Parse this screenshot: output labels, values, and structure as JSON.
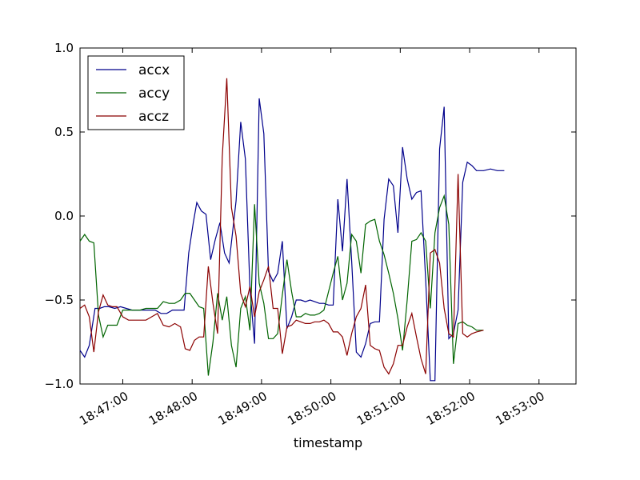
{
  "chart_data": {
    "type": "line",
    "xlabel": "timestamp",
    "ylabel": "",
    "x_tick_labels": [
      "18:47:00",
      "18:48:00",
      "18:49:00",
      "18:50:00",
      "18:51:00",
      "18:52:00",
      "18:53:00"
    ],
    "y_tick_labels": [
      "1.0",
      "0.5",
      "0.0",
      "−0.5",
      "−1.0"
    ],
    "xlim": [
      "18:46:23",
      "18:53:32"
    ],
    "ylim": [
      -1.0,
      1.0
    ],
    "grid": false,
    "legend_position": "top-left",
    "series": [
      {
        "name": "accx",
        "color": "#00008b",
        "points": [
          [
            "18:46:23",
            -0.8
          ],
          [
            "18:46:27",
            -0.84
          ],
          [
            "18:46:31",
            -0.77
          ],
          [
            "18:46:36",
            -0.55
          ],
          [
            "18:46:40",
            -0.55
          ],
          [
            "18:46:44",
            -0.54
          ],
          [
            "18:46:48",
            -0.54
          ],
          [
            "18:46:53",
            -0.55
          ],
          [
            "18:46:58",
            -0.54
          ],
          [
            "18:47:03",
            -0.55
          ],
          [
            "18:47:08",
            -0.56
          ],
          [
            "18:47:13",
            -0.56
          ],
          [
            "18:47:18",
            -0.56
          ],
          [
            "18:47:23",
            -0.56
          ],
          [
            "18:47:28",
            -0.56
          ],
          [
            "18:47:33",
            -0.58
          ],
          [
            "18:47:38",
            -0.58
          ],
          [
            "18:47:43",
            -0.56
          ],
          [
            "18:47:48",
            -0.56
          ],
          [
            "18:47:53",
            -0.56
          ],
          [
            "18:47:57",
            -0.22
          ],
          [
            "18:48:01",
            -0.04
          ],
          [
            "18:48:04",
            0.08
          ],
          [
            "18:48:08",
            0.03
          ],
          [
            "18:48:12",
            0.01
          ],
          [
            "18:48:16",
            -0.26
          ],
          [
            "18:48:20",
            -0.14
          ],
          [
            "18:48:24",
            -0.04
          ],
          [
            "18:48:28",
            -0.22
          ],
          [
            "18:48:32",
            -0.28
          ],
          [
            "18:48:38",
            0.09
          ],
          [
            "18:48:42",
            0.56
          ],
          [
            "18:48:46",
            0.34
          ],
          [
            "18:48:50",
            -0.43
          ],
          [
            "18:48:54",
            -0.76
          ],
          [
            "18:48:58",
            0.7
          ],
          [
            "18:49:02",
            0.49
          ],
          [
            "18:49:06",
            -0.33
          ],
          [
            "18:49:10",
            -0.39
          ],
          [
            "18:49:14",
            -0.34
          ],
          [
            "18:49:18",
            -0.15
          ],
          [
            "18:49:22",
            -0.67
          ],
          [
            "18:49:26",
            -0.6
          ],
          [
            "18:49:30",
            -0.5
          ],
          [
            "18:49:34",
            -0.5
          ],
          [
            "18:49:38",
            -0.51
          ],
          [
            "18:49:42",
            -0.5
          ],
          [
            "18:49:46",
            -0.51
          ],
          [
            "18:49:50",
            -0.52
          ],
          [
            "18:49:54",
            -0.52
          ],
          [
            "18:49:58",
            -0.53
          ],
          [
            "18:50:02",
            -0.53
          ],
          [
            "18:50:06",
            0.1
          ],
          [
            "18:50:10",
            -0.21
          ],
          [
            "18:50:14",
            0.22
          ],
          [
            "18:50:18",
            -0.27
          ],
          [
            "18:50:22",
            -0.81
          ],
          [
            "18:50:26",
            -0.84
          ],
          [
            "18:50:30",
            -0.76
          ],
          [
            "18:50:34",
            -0.64
          ],
          [
            "18:50:38",
            -0.63
          ],
          [
            "18:50:42",
            -0.63
          ],
          [
            "18:50:46",
            -0.02
          ],
          [
            "18:50:50",
            0.22
          ],
          [
            "18:50:54",
            0.18
          ],
          [
            "18:50:58",
            -0.1
          ],
          [
            "18:51:02",
            0.41
          ],
          [
            "18:51:06",
            0.22
          ],
          [
            "18:51:10",
            0.1
          ],
          [
            "18:51:14",
            0.14
          ],
          [
            "18:51:18",
            0.15
          ],
          [
            "18:51:22",
            -0.38
          ],
          [
            "18:51:26",
            -0.98
          ],
          [
            "18:51:30",
            -0.98
          ],
          [
            "18:51:34",
            0.4
          ],
          [
            "18:51:38",
            0.65
          ],
          [
            "18:51:42",
            -0.73
          ],
          [
            "18:51:46",
            -0.7
          ],
          [
            "18:51:50",
            -0.56
          ],
          [
            "18:51:54",
            0.2
          ],
          [
            "18:51:58",
            0.32
          ],
          [
            "18:52:02",
            0.3
          ],
          [
            "18:52:06",
            0.27
          ],
          [
            "18:52:12",
            0.27
          ],
          [
            "18:52:18",
            0.28
          ],
          [
            "18:52:24",
            0.27
          ],
          [
            "18:52:30",
            0.27
          ]
        ]
      },
      {
        "name": "accy",
        "color": "#006400",
        "points": [
          [
            "18:46:23",
            -0.15
          ],
          [
            "18:46:27",
            -0.11
          ],
          [
            "18:46:31",
            -0.15
          ],
          [
            "18:46:35",
            -0.16
          ],
          [
            "18:46:39",
            -0.59
          ],
          [
            "18:46:43",
            -0.72
          ],
          [
            "18:46:47",
            -0.65
          ],
          [
            "18:46:51",
            -0.65
          ],
          [
            "18:46:55",
            -0.65
          ],
          [
            "18:47:00",
            -0.56
          ],
          [
            "18:47:05",
            -0.56
          ],
          [
            "18:47:10",
            -0.56
          ],
          [
            "18:47:15",
            -0.56
          ],
          [
            "18:47:20",
            -0.55
          ],
          [
            "18:47:25",
            -0.55
          ],
          [
            "18:47:30",
            -0.55
          ],
          [
            "18:47:35",
            -0.51
          ],
          [
            "18:47:40",
            -0.52
          ],
          [
            "18:47:45",
            -0.52
          ],
          [
            "18:47:50",
            -0.5
          ],
          [
            "18:47:54",
            -0.46
          ],
          [
            "18:47:58",
            -0.46
          ],
          [
            "18:48:02",
            -0.5
          ],
          [
            "18:48:06",
            -0.54
          ],
          [
            "18:48:10",
            -0.55
          ],
          [
            "18:48:14",
            -0.95
          ],
          [
            "18:48:18",
            -0.75
          ],
          [
            "18:48:22",
            -0.46
          ],
          [
            "18:48:26",
            -0.62
          ],
          [
            "18:48:30",
            -0.48
          ],
          [
            "18:48:34",
            -0.77
          ],
          [
            "18:48:38",
            -0.9
          ],
          [
            "18:48:42",
            -0.55
          ],
          [
            "18:48:46",
            -0.48
          ],
          [
            "18:48:50",
            -0.68
          ],
          [
            "18:48:54",
            0.07
          ],
          [
            "18:48:58",
            -0.4
          ],
          [
            "18:49:02",
            -0.52
          ],
          [
            "18:49:06",
            -0.73
          ],
          [
            "18:49:10",
            -0.73
          ],
          [
            "18:49:14",
            -0.7
          ],
          [
            "18:49:18",
            -0.47
          ],
          [
            "18:49:22",
            -0.26
          ],
          [
            "18:49:26",
            -0.45
          ],
          [
            "18:49:30",
            -0.6
          ],
          [
            "18:49:34",
            -0.6
          ],
          [
            "18:49:38",
            -0.58
          ],
          [
            "18:49:42",
            -0.59
          ],
          [
            "18:49:46",
            -0.59
          ],
          [
            "18:49:50",
            -0.58
          ],
          [
            "18:49:54",
            -0.56
          ],
          [
            "18:49:58",
            -0.45
          ],
          [
            "18:50:02",
            -0.34
          ],
          [
            "18:50:06",
            -0.24
          ],
          [
            "18:50:10",
            -0.5
          ],
          [
            "18:50:14",
            -0.4
          ],
          [
            "18:50:18",
            -0.11
          ],
          [
            "18:50:22",
            -0.15
          ],
          [
            "18:50:26",
            -0.34
          ],
          [
            "18:50:30",
            -0.05
          ],
          [
            "18:50:34",
            -0.03
          ],
          [
            "18:50:38",
            -0.02
          ],
          [
            "18:50:42",
            -0.15
          ],
          [
            "18:50:46",
            -0.23
          ],
          [
            "18:50:50",
            -0.34
          ],
          [
            "18:50:54",
            -0.46
          ],
          [
            "18:50:58",
            -0.61
          ],
          [
            "18:51:02",
            -0.8
          ],
          [
            "18:51:06",
            -0.5
          ],
          [
            "18:51:10",
            -0.15
          ],
          [
            "18:51:14",
            -0.14
          ],
          [
            "18:51:18",
            -0.1
          ],
          [
            "18:51:22",
            -0.15
          ],
          [
            "18:51:26",
            -0.55
          ],
          [
            "18:51:30",
            -0.1
          ],
          [
            "18:51:34",
            0.05
          ],
          [
            "18:51:38",
            0.12
          ],
          [
            "18:51:42",
            -0.05
          ],
          [
            "18:51:46",
            -0.88
          ],
          [
            "18:51:50",
            -0.64
          ],
          [
            "18:51:54",
            -0.63
          ],
          [
            "18:51:58",
            -0.65
          ],
          [
            "18:52:02",
            -0.66
          ],
          [
            "18:52:06",
            -0.68
          ],
          [
            "18:52:12",
            -0.68
          ]
        ]
      },
      {
        "name": "accz",
        "color": "#8b0000",
        "points": [
          [
            "18:46:23",
            -0.55
          ],
          [
            "18:46:27",
            -0.53
          ],
          [
            "18:46:31",
            -0.6
          ],
          [
            "18:46:35",
            -0.81
          ],
          [
            "18:46:39",
            -0.57
          ],
          [
            "18:46:43",
            -0.47
          ],
          [
            "18:46:47",
            -0.53
          ],
          [
            "18:46:51",
            -0.54
          ],
          [
            "18:46:55",
            -0.54
          ],
          [
            "18:47:00",
            -0.6
          ],
          [
            "18:47:05",
            -0.62
          ],
          [
            "18:47:10",
            -0.62
          ],
          [
            "18:47:15",
            -0.62
          ],
          [
            "18:47:20",
            -0.62
          ],
          [
            "18:47:25",
            -0.6
          ],
          [
            "18:47:30",
            -0.58
          ],
          [
            "18:47:35",
            -0.65
          ],
          [
            "18:47:40",
            -0.66
          ],
          [
            "18:47:45",
            -0.64
          ],
          [
            "18:47:50",
            -0.66
          ],
          [
            "18:47:54",
            -0.79
          ],
          [
            "18:47:58",
            -0.8
          ],
          [
            "18:48:02",
            -0.74
          ],
          [
            "18:48:06",
            -0.72
          ],
          [
            "18:48:10",
            -0.72
          ],
          [
            "18:48:14",
            -0.3
          ],
          [
            "18:48:18",
            -0.52
          ],
          [
            "18:48:22",
            -0.7
          ],
          [
            "18:48:26",
            0.35
          ],
          [
            "18:48:30",
            0.82
          ],
          [
            "18:48:34",
            0.05
          ],
          [
            "18:48:38",
            -0.12
          ],
          [
            "18:48:42",
            -0.46
          ],
          [
            "18:48:46",
            -0.54
          ],
          [
            "18:48:50",
            -0.42
          ],
          [
            "18:48:54",
            -0.6
          ],
          [
            "18:48:58",
            -0.45
          ],
          [
            "18:49:02",
            -0.38
          ],
          [
            "18:49:06",
            -0.3
          ],
          [
            "18:49:10",
            -0.55
          ],
          [
            "18:49:14",
            -0.55
          ],
          [
            "18:49:18",
            -0.82
          ],
          [
            "18:49:22",
            -0.66
          ],
          [
            "18:49:26",
            -0.65
          ],
          [
            "18:49:30",
            -0.62
          ],
          [
            "18:49:34",
            -0.63
          ],
          [
            "18:49:38",
            -0.64
          ],
          [
            "18:49:42",
            -0.64
          ],
          [
            "18:49:46",
            -0.63
          ],
          [
            "18:49:50",
            -0.63
          ],
          [
            "18:49:54",
            -0.62
          ],
          [
            "18:49:58",
            -0.64
          ],
          [
            "18:50:02",
            -0.69
          ],
          [
            "18:50:06",
            -0.69
          ],
          [
            "18:50:10",
            -0.72
          ],
          [
            "18:50:14",
            -0.83
          ],
          [
            "18:50:18",
            -0.7
          ],
          [
            "18:50:22",
            -0.6
          ],
          [
            "18:50:26",
            -0.55
          ],
          [
            "18:50:30",
            -0.41
          ],
          [
            "18:50:34",
            -0.77
          ],
          [
            "18:50:38",
            -0.79
          ],
          [
            "18:50:42",
            -0.8
          ],
          [
            "18:50:46",
            -0.9
          ],
          [
            "18:50:50",
            -0.94
          ],
          [
            "18:50:54",
            -0.88
          ],
          [
            "18:50:58",
            -0.77
          ],
          [
            "18:51:02",
            -0.77
          ],
          [
            "18:51:06",
            -0.66
          ],
          [
            "18:51:10",
            -0.58
          ],
          [
            "18:51:14",
            -0.72
          ],
          [
            "18:51:18",
            -0.85
          ],
          [
            "18:51:22",
            -0.94
          ],
          [
            "18:51:26",
            -0.22
          ],
          [
            "18:51:30",
            -0.2
          ],
          [
            "18:51:34",
            -0.28
          ],
          [
            "18:51:38",
            -0.55
          ],
          [
            "18:51:42",
            -0.7
          ],
          [
            "18:51:46",
            -0.72
          ],
          [
            "18:51:50",
            0.25
          ],
          [
            "18:51:54",
            -0.7
          ],
          [
            "18:51:58",
            -0.72
          ],
          [
            "18:52:02",
            -0.7
          ],
          [
            "18:52:06",
            -0.69
          ],
          [
            "18:52:12",
            -0.68
          ]
        ]
      }
    ]
  }
}
